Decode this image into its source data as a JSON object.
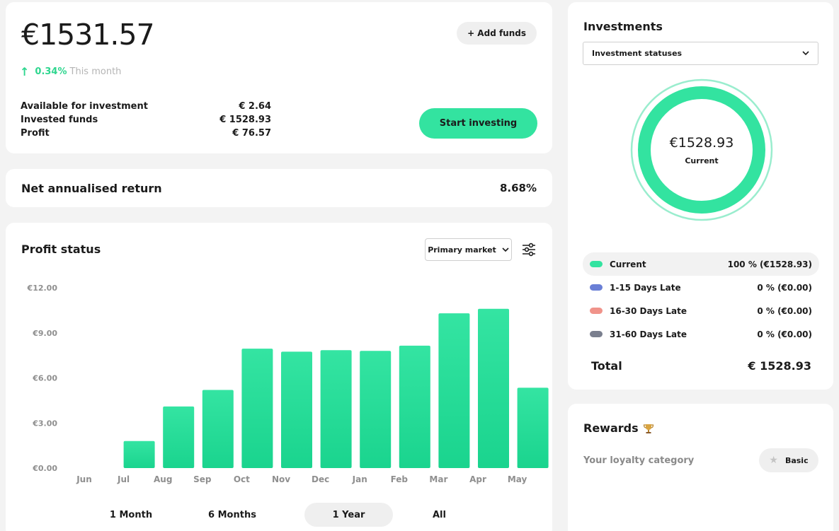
{
  "balance": {
    "amount": "€1531.57",
    "change_pct": "0.34%",
    "change_label": "This month",
    "add_funds_label": "+ Add funds",
    "stats": [
      {
        "label": "Available for investment",
        "value": "€ 2.64"
      },
      {
        "label": "Invested funds",
        "value": "€ 1528.93"
      },
      {
        "label": "Profit",
        "value": "€ 76.57"
      }
    ],
    "start_investing_label": "Start investing"
  },
  "return": {
    "label": "Net annualised return",
    "value": "8.68%"
  },
  "profit": {
    "title": "Profit status",
    "market_select": "Primary market",
    "periods": [
      "1 Month",
      "6 Months",
      "1 Year",
      "All"
    ],
    "active_period": "1 Year"
  },
  "chart_data": {
    "type": "bar",
    "categories": [
      "Jun",
      "Jul",
      "Aug",
      "Sep",
      "Oct",
      "Nov",
      "Dec",
      "Jan",
      "Feb",
      "Mar",
      "Apr",
      "May"
    ],
    "values": [
      0,
      1.8,
      4.1,
      5.2,
      7.95,
      7.75,
      7.85,
      7.8,
      8.15,
      10.3,
      10.6,
      5.35
    ],
    "yticks": [
      "€0.00",
      "€3.00",
      "€6.00",
      "€9.00",
      "€12.00"
    ],
    "ylim": [
      0,
      12
    ],
    "bar_color": "#33e3a0",
    "grid": false
  },
  "investments": {
    "title": "Investments",
    "status_select": "Investment statuses",
    "donut_amount": "€1528.93",
    "donut_label": "Current",
    "donut_color": "#33e3a0",
    "legend": [
      {
        "label": "Current",
        "value": "100 % (€1528.93)",
        "color": "#33e3a0"
      },
      {
        "label": "1-15 Days Late",
        "value": "0 % (€0.00)",
        "color": "#6a7fd6"
      },
      {
        "label": "16-30 Days Late",
        "value": "0 % (€0.00)",
        "color": "#f0938a"
      },
      {
        "label": "31-60 Days Late",
        "value": "0 % (€0.00)",
        "color": "#7a7f8e"
      }
    ],
    "total_label": "Total",
    "total_value": "€ 1528.93"
  },
  "rewards": {
    "title": "Rewards",
    "loyalty_label": "Your loyalty category",
    "category": "Basic"
  }
}
